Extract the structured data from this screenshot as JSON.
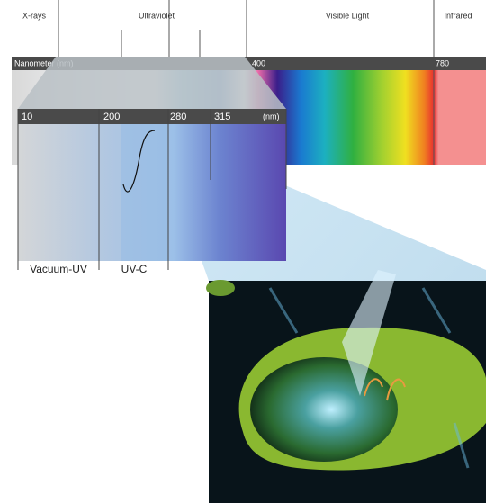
{
  "spectrum": {
    "regions": [
      "X-rays",
      "Ultraviolet",
      "Visible Light",
      "Infrared"
    ],
    "scale": {
      "unit": "Nanometer (nm)",
      "ticks": [
        "400",
        "780"
      ]
    }
  },
  "zoom": {
    "ticks": [
      "10",
      "200",
      "280",
      "315"
    ],
    "unit": "(nm)",
    "bands": [
      "Vacuum-UV",
      "UV-C"
    ]
  }
}
